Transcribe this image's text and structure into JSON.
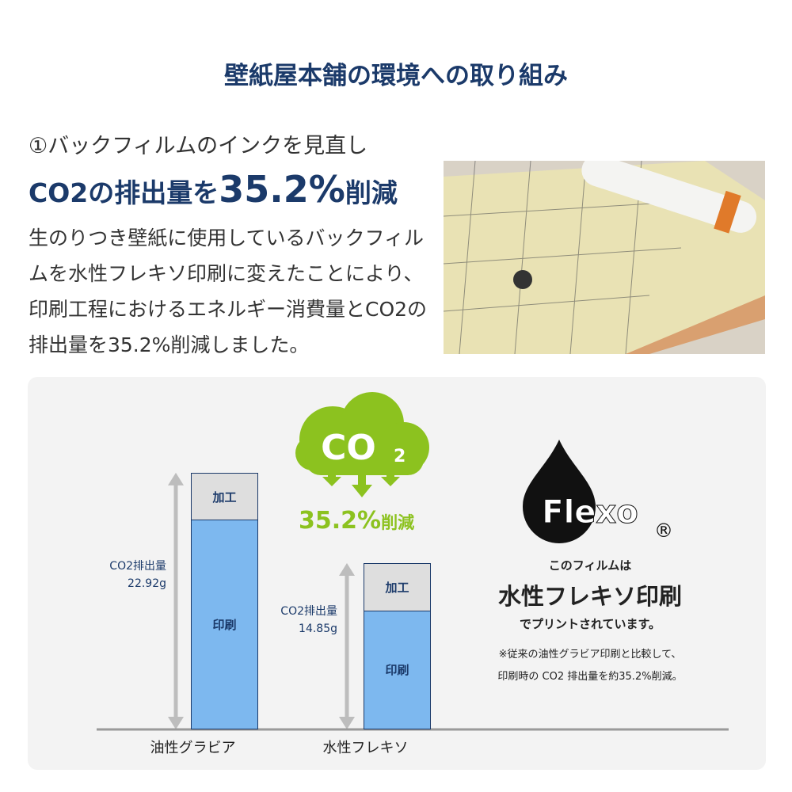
{
  "title": "壁紙屋本舗の環境への取り組み",
  "section": {
    "subtitle": "①バックフィルムのインクを見直し",
    "headline_prefix": "CO2の排出量を",
    "headline_value": "35.2%",
    "headline_suffix": "削減",
    "body": "生のりつき壁紙に使用しているバックフィルムを水性フレキソ印刷に変えたことにより、印刷工程におけるエネルギー消費量とCO2の排出量を35.2%削減しました。"
  },
  "infographic": {
    "cloud_text": "CO",
    "cloud_sub": "2",
    "reduction_value": "35.2%",
    "reduction_suffix": "削減",
    "colors": {
      "green": "#8cc21f",
      "navy": "#1b3a6a",
      "print": "#7db8ef",
      "process": "#dedede"
    },
    "flexo_logo": "Flexo",
    "registered": "®",
    "flexo_line1": "このフィルムは",
    "flexo_line2": "水性フレキソ印刷",
    "flexo_line3": "でプリントされています。",
    "note_line1": "※従来の油性グラビア印刷と比較して、",
    "note_line2": "印刷時の CO2 排出量を約35.2%削減。"
  },
  "chart_data": {
    "type": "bar",
    "stacked": true,
    "categories": [
      "油性グラビア",
      "水性フレキソ"
    ],
    "segment_labels": [
      "印刷",
      "加工"
    ],
    "totals": [
      22.92,
      14.85
    ],
    "total_labels": [
      {
        "label": "CO2排出量",
        "value": "22.92g"
      },
      {
        "label": "CO2排出量",
        "value": "14.85g"
      }
    ],
    "unit": "g"
  }
}
